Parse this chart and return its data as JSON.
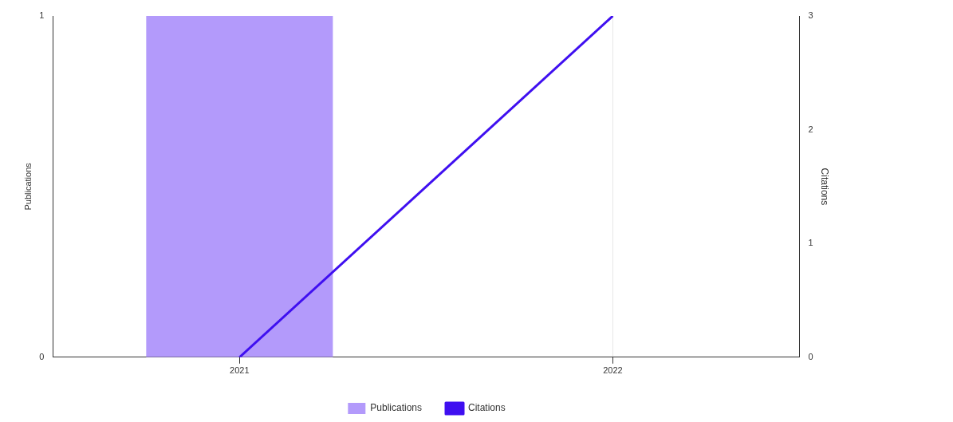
{
  "chart_data": {
    "type": "bar",
    "categories": [
      "2021",
      "2022"
    ],
    "series": [
      {
        "name": "Publications",
        "color": "#b39afb",
        "values": [
          1,
          0
        ]
      },
      {
        "name": "Citations",
        "type": "line",
        "axis": "y2",
        "color": "#3f0ff0",
        "values": [
          0,
          3
        ]
      }
    ],
    "ylabel": "Publications",
    "y2label": "Citations",
    "ylim": [
      0,
      1
    ],
    "yticks": [
      0,
      1
    ],
    "y2lim": [
      0,
      3
    ],
    "y2ticks": [
      0,
      1,
      2,
      3
    ],
    "grid": "x",
    "legend": "bottom",
    "marker": "none"
  }
}
